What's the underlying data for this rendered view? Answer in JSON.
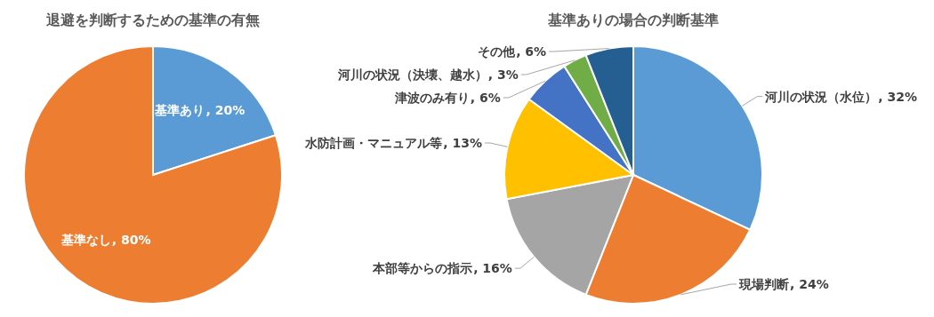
{
  "chart_data": [
    {
      "type": "pie",
      "title": "退避を判断するための基準の有無",
      "categories": [
        "基準あり",
        "基準なし"
      ],
      "values": [
        20,
        80
      ],
      "colors": [
        "#5b9bd5",
        "#ed7d31"
      ],
      "value_labels": [
        ", 20%",
        ", 80%"
      ]
    },
    {
      "type": "pie",
      "title": "基準ありの場合の判断基準",
      "categories": [
        "河川の状況（水位）",
        "現場判断",
        "本部等からの指示",
        "水防計画・マニュアル等",
        "津波のみ有り",
        "河川の状況（決壊、越水）",
        "その他"
      ],
      "values": [
        32,
        24,
        16,
        13,
        6,
        3,
        6
      ],
      "colors": [
        "#5b9bd5",
        "#ed7d31",
        "#a5a5a5",
        "#ffc000",
        "#4472c4",
        "#70ad47",
        "#255e91"
      ],
      "value_labels": [
        ", 32%",
        ", 24%",
        ", 16%",
        ", 13%",
        ", 6%",
        ", 3%",
        ", 6%"
      ]
    }
  ]
}
